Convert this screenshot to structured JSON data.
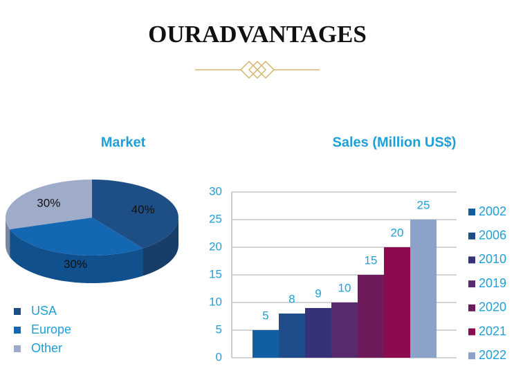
{
  "header": {
    "title": "OURADVANTAGES"
  },
  "chart_data": [
    {
      "type": "pie",
      "title": "Market",
      "categories": [
        "USA",
        "Europe",
        "Other"
      ],
      "values": [
        40,
        30,
        30
      ],
      "value_labels": [
        "40%",
        "30%",
        "30%"
      ],
      "colors": [
        "#1d4f86",
        "#1467b3",
        "#9eacc9"
      ],
      "legend": "bottom-left"
    },
    {
      "type": "bar",
      "title": "Sales (Million US$)",
      "categories": [
        "2002",
        "2006",
        "2010",
        "2019",
        "2020",
        "2021",
        "2022"
      ],
      "values": [
        5,
        8,
        9,
        10,
        15,
        20,
        25
      ],
      "colors": [
        "#0f5fa2",
        "#1f4c8b",
        "#35327a",
        "#592a6c",
        "#6e1a5b",
        "#8c0b4f",
        "#8ba3c9"
      ],
      "ylim": [
        0,
        30
      ],
      "yticks": [
        0,
        5,
        10,
        15,
        20,
        25,
        30
      ],
      "grid": true,
      "legend": "right"
    }
  ]
}
